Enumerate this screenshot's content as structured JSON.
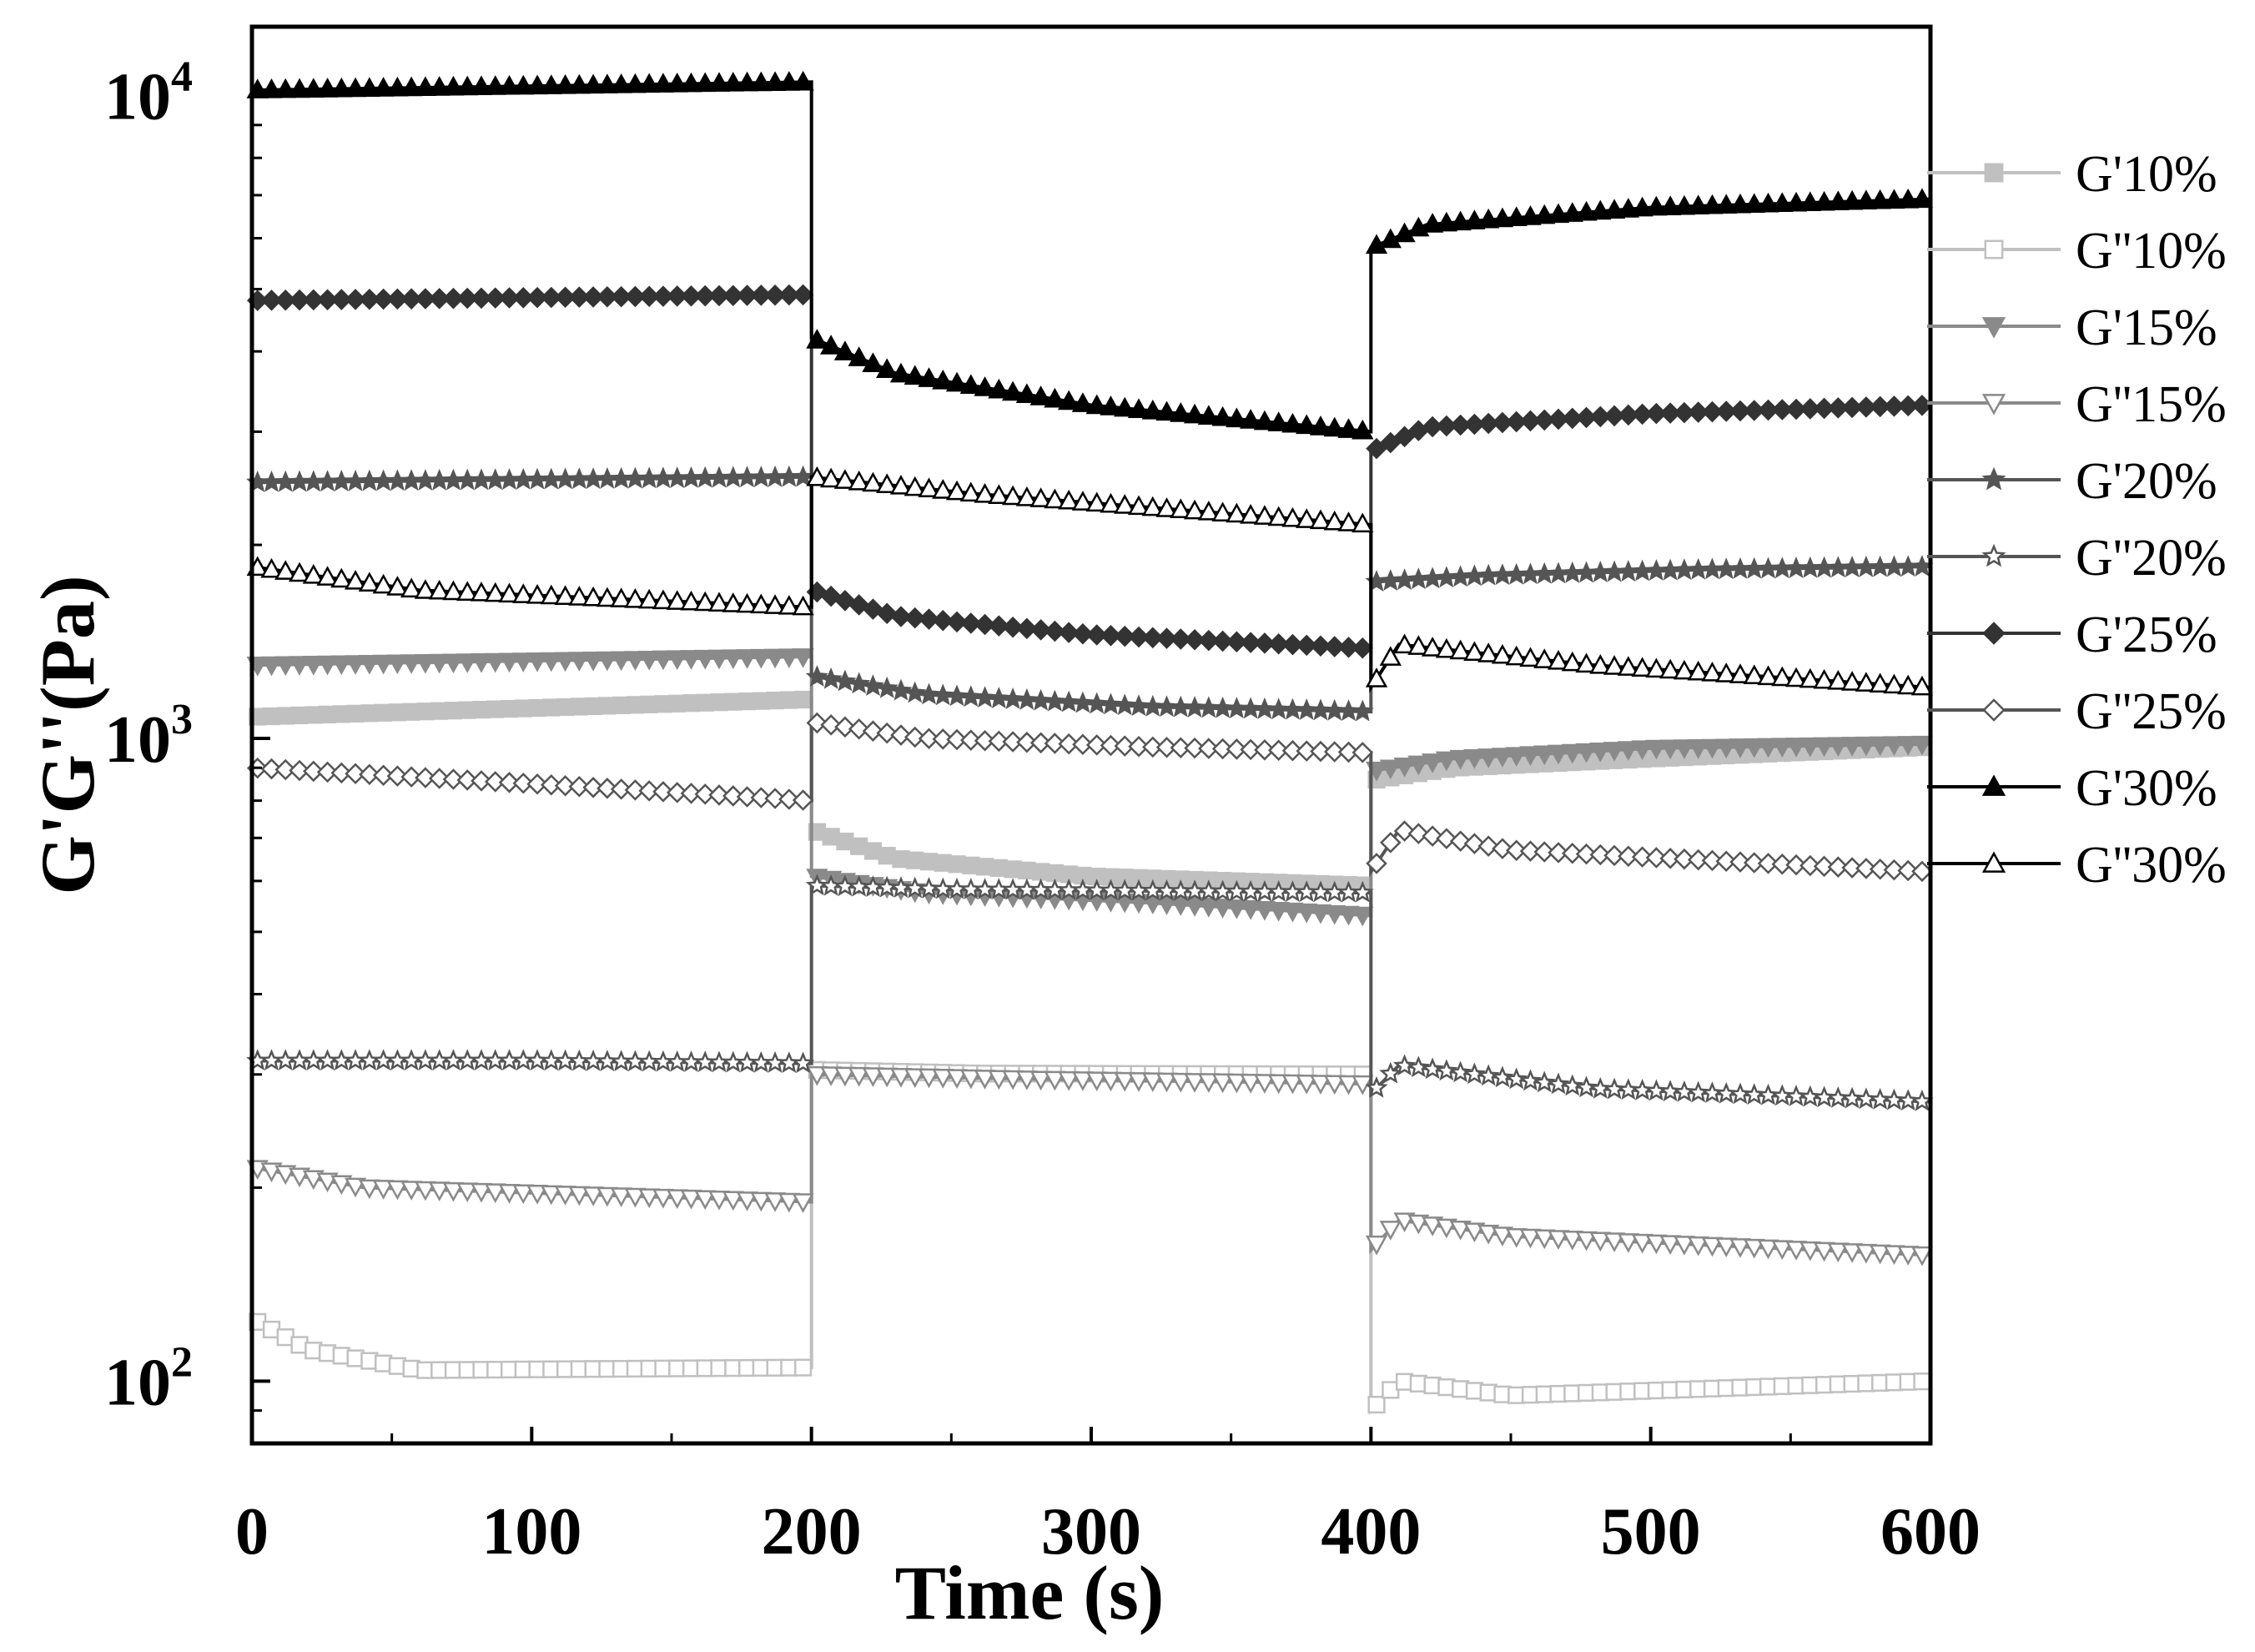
{
  "chart_data": {
    "type": "line",
    "title": "",
    "xlabel": "Time (s)",
    "ylabel": "G'G''(Pa)",
    "xlim": [
      0,
      600
    ],
    "ylim": [
      80,
      12800
    ],
    "yscale": "log",
    "grid": false,
    "legend_position": "right",
    "x_ticks": [
      {
        "value": 0,
        "label": "0"
      },
      {
        "value": 100,
        "label": "100"
      },
      {
        "value": 200,
        "label": "200"
      },
      {
        "value": 300,
        "label": "300"
      },
      {
        "value": 400,
        "label": "400"
      },
      {
        "value": 500,
        "label": "500"
      },
      {
        "value": 600,
        "label": "600"
      }
    ],
    "y_ticks": [
      {
        "value": 100,
        "base": "10",
        "exp": "2"
      },
      {
        "value": 1000,
        "base": "10",
        "exp": "3"
      },
      {
        "value": 10000,
        "base": "10",
        "exp": "4"
      }
    ],
    "series": [
      {
        "name": "G'10%",
        "marker": "square",
        "filled": true,
        "color": "#c0c0c0",
        "segments": [
          [
            [
              0,
              1080
            ],
            [
              200,
              1150
            ]
          ],
          [
            [
              200,
              720
            ],
            [
              230,
              650
            ],
            [
              300,
              610
            ],
            [
              400,
              590
            ]
          ],
          [
            [
              400,
              860
            ],
            [
              430,
              900
            ],
            [
              500,
              930
            ],
            [
              600,
              970
            ]
          ]
        ]
      },
      {
        "name": "G''10%",
        "marker": "square",
        "filled": false,
        "color": "#c0c0c0",
        "segments": [
          [
            [
              0,
              125
            ],
            [
              20,
              112
            ],
            [
              60,
              104
            ],
            [
              200,
              105
            ]
          ],
          [
            [
              200,
              305
            ],
            [
              260,
              301
            ],
            [
              400,
              300
            ]
          ],
          [
            [
              400,
              90
            ],
            [
              410,
              100
            ],
            [
              450,
              95
            ],
            [
              600,
              100
            ]
          ]
        ]
      },
      {
        "name": "G'15%",
        "marker": "triangle-down",
        "filled": true,
        "color": "#8a8a8a",
        "segments": [
          [
            [
              0,
              1300
            ],
            [
              200,
              1340
            ]
          ],
          [
            [
              200,
              610
            ],
            [
              240,
              575
            ],
            [
              320,
              555
            ],
            [
              400,
              530
            ]
          ],
          [
            [
              400,
              890
            ],
            [
              430,
              930
            ],
            [
              500,
              965
            ],
            [
              600,
              980
            ]
          ]
        ]
      },
      {
        "name": "G''15%",
        "marker": "triangle-down",
        "filled": false,
        "color": "#8a8a8a",
        "segments": [
          [
            [
              0,
              215
            ],
            [
              40,
              200
            ],
            [
              200,
              190
            ]
          ],
          [
            [
              200,
              300
            ],
            [
              280,
              295
            ],
            [
              400,
              290
            ]
          ],
          [
            [
              400,
              160
            ],
            [
              410,
              178
            ],
            [
              450,
              168
            ],
            [
              600,
              157
            ]
          ]
        ]
      },
      {
        "name": "G'20%",
        "marker": "star",
        "filled": true,
        "color": "#555555",
        "segments": [
          [
            [
              0,
              2500
            ],
            [
              200,
              2550
            ]
          ],
          [
            [
              200,
              1250
            ],
            [
              240,
              1170
            ],
            [
              320,
              1120
            ],
            [
              400,
              1100
            ]
          ],
          [
            [
              400,
              1750
            ],
            [
              440,
              1790
            ],
            [
              520,
              1830
            ],
            [
              600,
              1850
            ]
          ]
        ]
      },
      {
        "name": "G''20%",
        "marker": "star",
        "filled": false,
        "color": "#555555",
        "segments": [
          [
            [
              0,
              315
            ],
            [
              100,
              315
            ],
            [
              200,
              312
            ]
          ],
          [
            [
              200,
              590
            ],
            [
              250,
              582
            ],
            [
              400,
              575
            ]
          ],
          [
            [
              400,
              280
            ],
            [
              410,
              310
            ],
            [
              480,
              285
            ],
            [
              600,
              272
            ]
          ]
        ]
      },
      {
        "name": "G'25%",
        "marker": "diamond",
        "filled": true,
        "color": "#333333",
        "segments": [
          [
            [
              0,
              4800
            ],
            [
              200,
              4900
            ]
          ],
          [
            [
              200,
              1700
            ],
            [
              230,
              1550
            ],
            [
              300,
              1450
            ],
            [
              400,
              1380
            ]
          ],
          [
            [
              400,
              2800
            ],
            [
              420,
              3050
            ],
            [
              500,
              3200
            ],
            [
              600,
              3300
            ]
          ]
        ]
      },
      {
        "name": "G''25%",
        "marker": "diamond",
        "filled": false,
        "color": "#555555",
        "segments": [
          [
            [
              0,
              900
            ],
            [
              100,
              850
            ],
            [
              200,
              800
            ]
          ],
          [
            [
              200,
              1060
            ],
            [
              240,
              1000
            ],
            [
              320,
              970
            ],
            [
              400,
              950
            ]
          ],
          [
            [
              400,
              620
            ],
            [
              410,
              720
            ],
            [
              450,
              670
            ],
            [
              600,
              620
            ]
          ]
        ]
      },
      {
        "name": "G'30%",
        "marker": "triangle-up",
        "filled": true,
        "color": "#000000",
        "segments": [
          [
            [
              0,
              10200
            ],
            [
              200,
              10500
            ]
          ],
          [
            [
              200,
              4200
            ],
            [
              230,
              3700
            ],
            [
              300,
              3300
            ],
            [
              400,
              3000
            ]
          ],
          [
            [
              400,
              5800
            ],
            [
              420,
              6300
            ],
            [
              500,
              6700
            ],
            [
              600,
              6900
            ]
          ]
        ]
      },
      {
        "name": "G''30%",
        "marker": "triangle-up",
        "filled": false,
        "color": "#000000",
        "segments": [
          [
            [
              0,
              1850
            ],
            [
              60,
              1700
            ],
            [
              200,
              1600
            ]
          ],
          [
            [
              200,
              2550
            ],
            [
              260,
              2400
            ],
            [
              400,
              2150
            ]
          ],
          [
            [
              400,
              1200
            ],
            [
              410,
              1400
            ],
            [
              480,
              1300
            ],
            [
              600,
              1200
            ]
          ]
        ]
      }
    ]
  }
}
